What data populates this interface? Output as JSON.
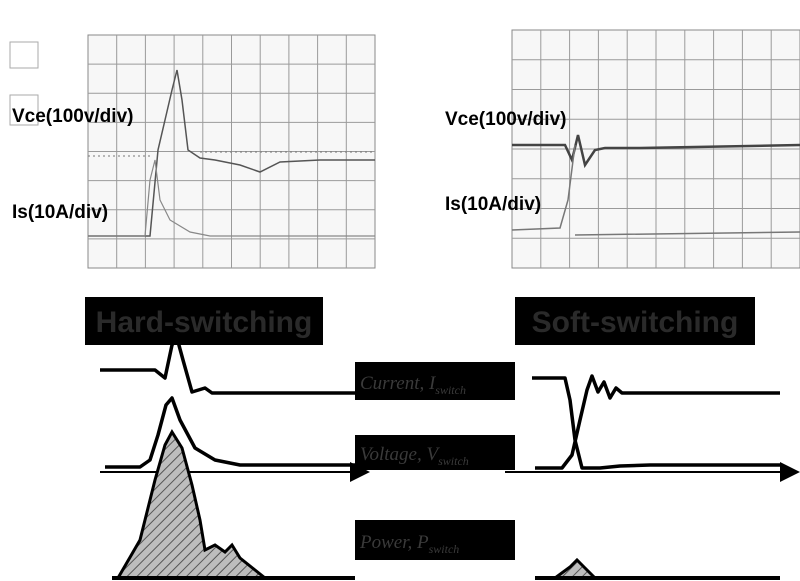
{
  "scopes": [
    {
      "vce_label": "Vce(100v/div)",
      "is_label": "Is(10A/div)"
    },
    {
      "vce_label": "Vce(100v/div)",
      "is_label": "Is(10A/div)"
    }
  ],
  "panels": [
    {
      "title": "Hard-switching"
    },
    {
      "title": "Soft-switching"
    }
  ],
  "legend": [
    {
      "text": "Current, I",
      "sub": "switch"
    },
    {
      "text": "Voltage, V",
      "sub": "switch"
    },
    {
      "text": "Power, P",
      "sub": "switch"
    }
  ]
}
